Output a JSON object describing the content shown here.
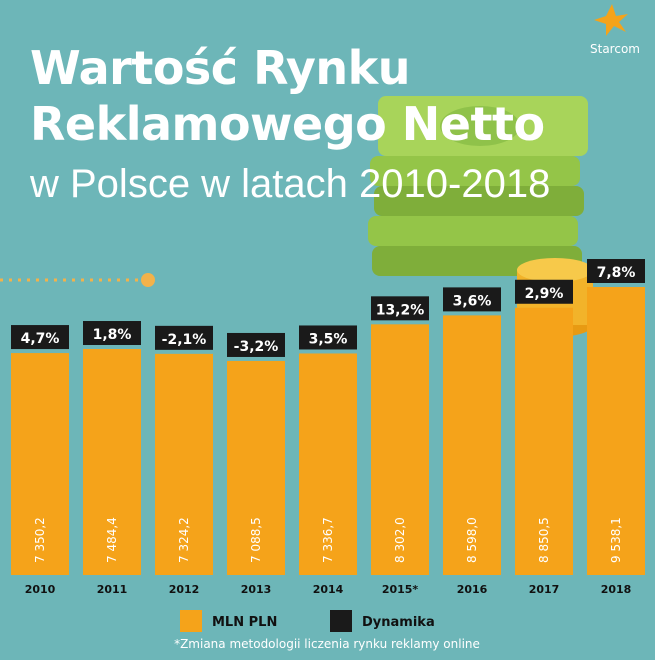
{
  "logo": "Starcom",
  "chart_data": {
    "type": "bar",
    "title": "Wartość Rynku Reklamowego Netto",
    "subtitle": "w Polsce w latach 2010-2018",
    "categories": [
      "2010",
      "2011",
      "2012",
      "2013",
      "2014",
      "2015*",
      "2016",
      "2017",
      "2018"
    ],
    "series": [
      {
        "name": "MLN PLN",
        "color": "#f5a31a",
        "values": [
          7350.2,
          7484.4,
          7324.2,
          7088.5,
          7336.7,
          8302.0,
          8598.0,
          8850.5,
          9538.1
        ],
        "value_labels": [
          "7 350,2",
          "7 484,4",
          "7 324,2",
          "7 088,5",
          "7 336,7",
          "8 302,0",
          "8 598,0",
          "8 850,5",
          "9 538,1"
        ]
      },
      {
        "name": "Dynamika",
        "color": "#1a1a1a",
        "values": [
          4.7,
          1.8,
          -2.1,
          -3.2,
          3.5,
          13.2,
          3.6,
          2.9,
          7.8
        ],
        "value_labels": [
          "4,7%",
          "1,8%",
          "-2,1%",
          "-3,2%",
          "3,5%",
          "13,2%",
          "3,6%",
          "2,9%",
          "7,8%"
        ]
      }
    ],
    "footnote": "*Zmiana metodologii liczenia rynku reklamy online"
  }
}
